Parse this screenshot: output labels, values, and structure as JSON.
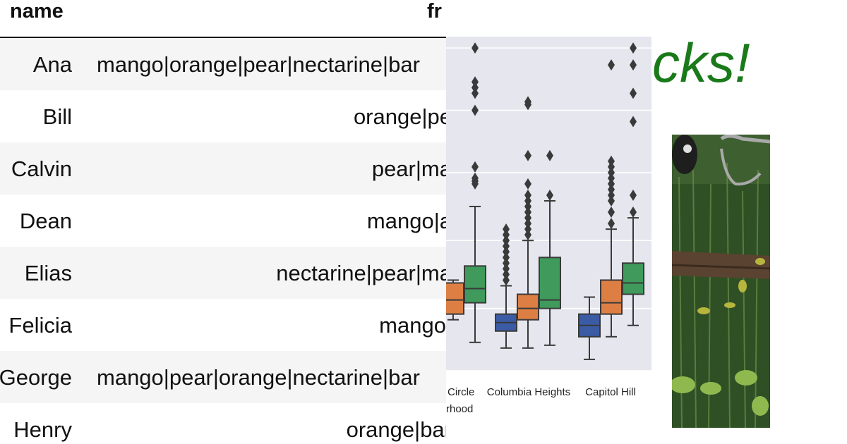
{
  "table": {
    "headers": {
      "name": "name",
      "fruits": "fr"
    },
    "rows": [
      {
        "name": "Ana",
        "fruits": "mango|orange|pear|nectarine|bar"
      },
      {
        "name": "Bill",
        "fruits": "orange|pe"
      },
      {
        "name": "Calvin",
        "fruits": "pear|ma"
      },
      {
        "name": "Dean",
        "fruits": "mango|a"
      },
      {
        "name": "Elias",
        "fruits": "nectarine|pear|ma"
      },
      {
        "name": "Felicia",
        "fruits": "mango|"
      },
      {
        "name": "George",
        "fruits": "mango|pear|orange|nectarine|bar"
      },
      {
        "name": "Henry",
        "fruits": "orange|bar"
      }
    ]
  },
  "title_fragment": "cks!",
  "chart_data": {
    "type": "box",
    "categories": [
      "Circle",
      "Columbia Heights",
      "Capitol Hill"
    ],
    "category_sublabels": [
      "rhood",
      "",
      ""
    ],
    "series_colors": [
      "#3b5ba5",
      "#dd7f45",
      "#3f9a5b"
    ],
    "background": "#e6e6ef",
    "grid": true,
    "boxes": [
      {
        "category": 0,
        "series": 2,
        "q1": 6,
        "median": 8.5,
        "q3": 12.5,
        "low": -1,
        "high": 23,
        "outliers": [
          27,
          27.5,
          28,
          30,
          40,
          43,
          44,
          45,
          51
        ]
      },
      {
        "category": 0,
        "series": 1,
        "q1": 4,
        "median": 6.5,
        "q3": 9.5,
        "low": 3,
        "high": 10,
        "outliers": []
      },
      {
        "category": 1,
        "series": 0,
        "q1": 1,
        "median": 2.5,
        "q3": 4,
        "low": -2,
        "high": 9,
        "outliers": [
          10,
          11,
          12,
          13,
          14,
          15,
          16,
          17,
          18,
          19
        ]
      },
      {
        "category": 1,
        "series": 1,
        "q1": 3,
        "median": 5,
        "q3": 7.5,
        "low": -2,
        "high": 17,
        "outliers": [
          18,
          19,
          20,
          21,
          22,
          23,
          24,
          25,
          27,
          32,
          41,
          41.5
        ]
      },
      {
        "category": 1,
        "series": 2,
        "q1": 5,
        "median": 6.5,
        "q3": 14,
        "low": -1.5,
        "high": 24,
        "outliers": [
          25,
          32
        ]
      },
      {
        "category": 2,
        "series": 0,
        "q1": 0,
        "median": 2,
        "q3": 4,
        "low": -4,
        "high": 7,
        "outliers": []
      },
      {
        "category": 2,
        "series": 1,
        "q1": 4,
        "median": 6,
        "q3": 10,
        "low": 0,
        "high": 19,
        "outliers": [
          20,
          22,
          24,
          25,
          26,
          27,
          28,
          29,
          30,
          31,
          48
        ]
      },
      {
        "category": 2,
        "series": 2,
        "q1": 7.5,
        "median": 9.5,
        "q3": 13,
        "low": 2,
        "high": 21,
        "outliers": [
          22,
          25,
          38,
          43,
          48,
          51
        ]
      }
    ],
    "ylim": [
      -6,
      53
    ]
  },
  "photo": {
    "colors": {
      "foliage": "#2f4f25",
      "light": "#6d8f48",
      "branch": "#5a4330",
      "metal": "#a9a9a9",
      "leaf": "#b7b53e"
    }
  }
}
